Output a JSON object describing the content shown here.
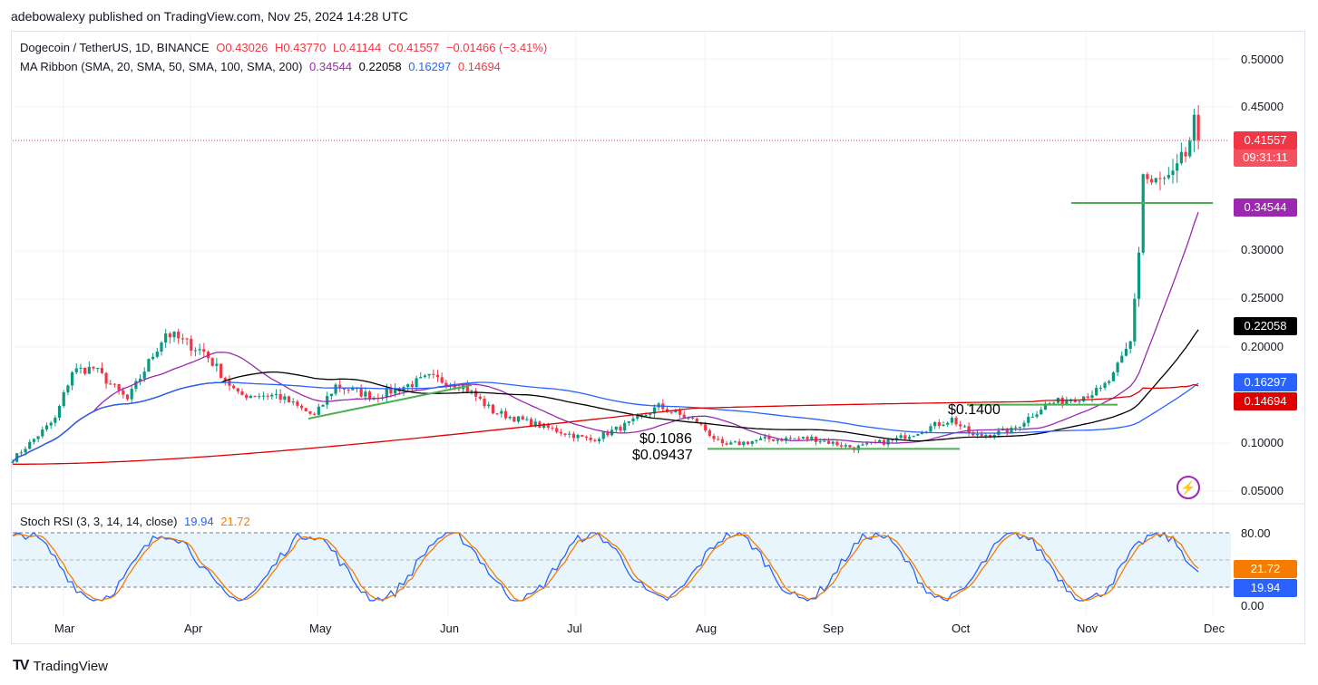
{
  "caption": "adebowalexy published on TradingView.com, Nov 25, 2024 14:28 UTC",
  "legend": {
    "symbol": "Dogecoin / TetherUS, 1D, BINANCE",
    "o": "O0.43026",
    "h": "H0.43770",
    "l": "L0.41144",
    "c": "C0.41557",
    "chg": "−0.01466 (−3.41%)",
    "ma_label": "MA Ribbon (SMA, 20, SMA, 50, SMA, 100, SMA, 200)",
    "ma20": "0.34544",
    "ma50": "0.22058",
    "ma100": "0.16297",
    "ma200": "0.14694",
    "stoch_label": "Stoch RSI (3, 3, 14, 14, close)",
    "stoch_k": "19.94",
    "stoch_d": "21.72"
  },
  "price_axis": [
    "0.50000",
    "0.45000",
    "0.30000",
    "0.25000",
    "0.20000",
    "0.10000",
    "0.05000"
  ],
  "price_tags": {
    "last": "0.41557",
    "countdown": "09:31:11",
    "ma20": "0.34544",
    "ma50": "0.22058",
    "ma100": "0.16297",
    "ma200": "0.14694"
  },
  "stoch_axis": [
    "80.00",
    "0.00"
  ],
  "stoch_tags": {
    "d": "21.72",
    "k": "19.94"
  },
  "time_axis": [
    "Mar",
    "Apr",
    "May",
    "Jun",
    "Jul",
    "Aug",
    "Sep",
    "Oct",
    "Nov",
    "Dec"
  ],
  "annotations": {
    "a1": "$0.1400",
    "a2": "$0.1086",
    "a3": "$0.09437"
  },
  "footer": "TradingView",
  "colors": {
    "up": "#089981",
    "down": "#f23645",
    "ma20": "#9c27b0",
    "ma50": "#000000",
    "ma100": "#2962ff",
    "ma200": "#e00000",
    "k": "#2962ff",
    "d": "#f57c00",
    "support": "#4caf50"
  },
  "chart_data": {
    "type": "candlestick",
    "price_range": [
      0.04,
      0.52
    ],
    "stoch_range": [
      0,
      100
    ],
    "anchors": [
      {
        "month": "Feb-20",
        "close": 0.083
      },
      {
        "month": "Mar-01",
        "close": 0.125
      },
      {
        "month": "Mar-05",
        "close": 0.175
      },
      {
        "month": "Mar-10",
        "close": 0.178
      },
      {
        "month": "Mar-18",
        "close": 0.145
      },
      {
        "month": "Mar-27",
        "close": 0.215
      },
      {
        "month": "Apr-05",
        "close": 0.195
      },
      {
        "month": "Apr-13",
        "close": 0.15
      },
      {
        "month": "Apr-22",
        "close": 0.15
      },
      {
        "month": "May-01",
        "close": 0.128
      },
      {
        "month": "May-06",
        "close": 0.16
      },
      {
        "month": "May-15",
        "close": 0.148
      },
      {
        "month": "May-28",
        "close": 0.168
      },
      {
        "month": "Jun-05",
        "close": 0.16
      },
      {
        "month": "Jun-12",
        "close": 0.133
      },
      {
        "month": "Jun-20",
        "close": 0.122
      },
      {
        "month": "Jul-05",
        "close": 0.103
      },
      {
        "month": "Jul-15",
        "close": 0.122
      },
      {
        "month": "Jul-21",
        "close": 0.138
      },
      {
        "month": "Jul-30",
        "close": 0.122
      },
      {
        "month": "Aug-05",
        "close": 0.097
      },
      {
        "month": "Aug-15",
        "close": 0.104
      },
      {
        "month": "Aug-26",
        "close": 0.105
      },
      {
        "month": "Sep-05",
        "close": 0.095
      },
      {
        "month": "Sep-15",
        "close": 0.104
      },
      {
        "month": "Sep-28",
        "close": 0.125
      },
      {
        "month": "Oct-03",
        "close": 0.107
      },
      {
        "month": "Oct-12",
        "close": 0.113
      },
      {
        "month": "Oct-20",
        "close": 0.14
      },
      {
        "month": "Oct-28",
        "close": 0.148
      },
      {
        "month": "Nov-02",
        "close": 0.155
      },
      {
        "month": "Nov-05",
        "close": 0.17
      },
      {
        "month": "Nov-09",
        "close": 0.205
      },
      {
        "month": "Nov-11",
        "close": 0.3
      },
      {
        "month": "Nov-12",
        "close": 0.38
      },
      {
        "month": "Nov-14",
        "close": 0.37
      },
      {
        "month": "Nov-19",
        "close": 0.375
      },
      {
        "month": "Nov-22",
        "close": 0.4
      },
      {
        "month": "Nov-24",
        "close": 0.43
      },
      {
        "month": "Nov-25",
        "close": 0.41557
      }
    ],
    "support_levels": [
      0.35,
      0.14,
      0.094
    ],
    "last_close": 0.41557
  }
}
